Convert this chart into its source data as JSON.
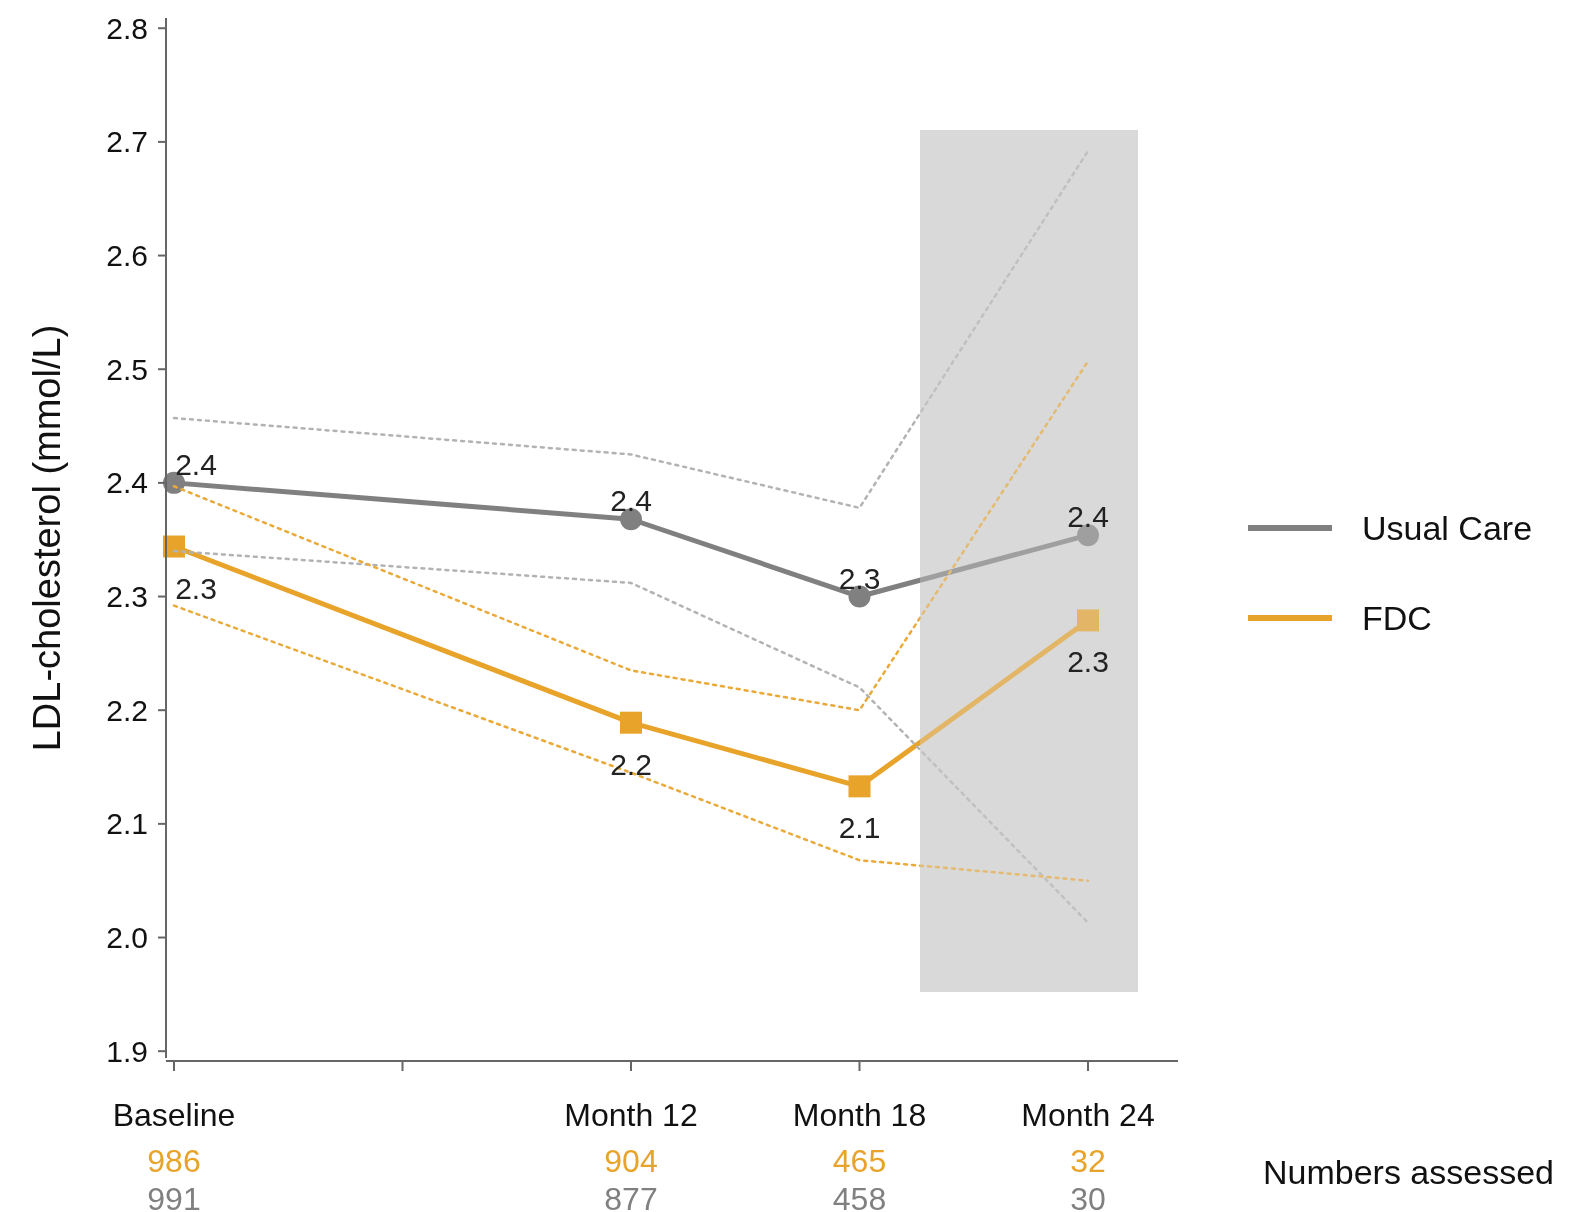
{
  "chart_data": {
    "type": "line",
    "ylabel": "LDL-cholesterol (mmol/L)",
    "categories": [
      "Baseline",
      null,
      "Month 12",
      "Month 18",
      "Month 24"
    ],
    "ylim": [
      1.894,
      2.809
    ],
    "yticks": [
      {
        "value": 1.9,
        "label": "1.9"
      },
      {
        "value": 2.0,
        "label": "2.0"
      },
      {
        "value": 2.1,
        "label": "2.1"
      },
      {
        "value": 2.2,
        "label": "2.2"
      },
      {
        "value": 2.3,
        "label": "2.3"
      },
      {
        "value": 2.4,
        "label": "2.4"
      },
      {
        "value": 2.5,
        "label": "2.5"
      },
      {
        "value": 2.6,
        "label": "2.6"
      },
      {
        "value": 2.7,
        "label": "2.7"
      },
      {
        "value": 2.8,
        "label": "2.8"
      }
    ],
    "series": [
      {
        "name": "Usual Care",
        "color": "#808080",
        "marker": "circle",
        "values": [
          2.4,
          null,
          2.368,
          2.3,
          2.354
        ],
        "value_labels": [
          "2.4",
          null,
          "2.4",
          "2.3",
          "2.4"
        ]
      },
      {
        "name": "FDC",
        "color": "#e8a32a",
        "marker": "square",
        "values": [
          2.344,
          null,
          2.189,
          2.133,
          2.279
        ],
        "value_labels": [
          "2.3",
          null,
          "2.2",
          "2.1",
          "2.3"
        ]
      },
      {
        "color": "#b3b3b3",
        "line_style": "dotted",
        "marker": "none",
        "values": [
          2.457,
          null,
          2.425,
          2.378,
          2.692
        ]
      },
      {
        "color": "#b3b3b3",
        "line_style": "dotted",
        "marker": "none",
        "values": [
          2.34,
          null,
          2.312,
          2.22,
          2.013
        ]
      },
      {
        "color": "#eaaa3a",
        "line_style": "dotted",
        "marker": "none",
        "values": [
          2.397,
          null,
          2.235,
          2.2,
          2.507
        ]
      },
      {
        "color": "#eaaa3a",
        "line_style": "dotted",
        "marker": "none",
        "values": [
          2.292,
          null,
          2.145,
          2.068,
          2.05
        ]
      }
    ],
    "line_style": "solid",
    "legend": "right",
    "annotations": [
      "986",
      "991",
      "904",
      "877",
      "465",
      "458",
      "32",
      "30",
      "Numbers assessed"
    ]
  }
}
